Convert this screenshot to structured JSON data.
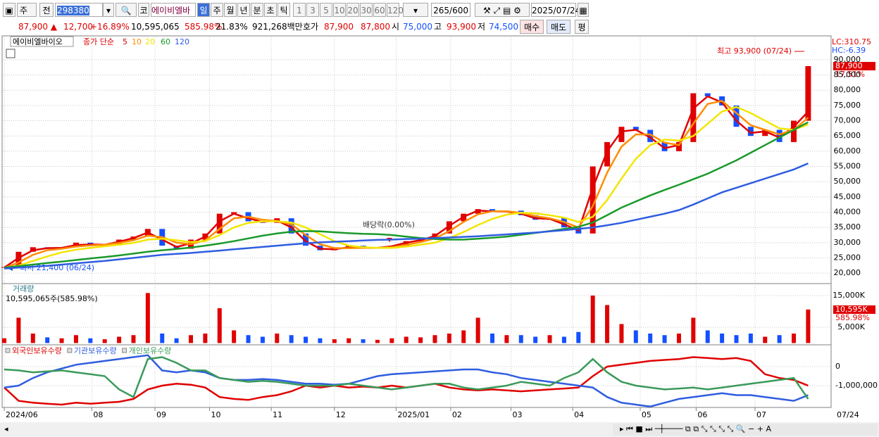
{
  "toolbar": {
    "market": "주",
    "range": "전",
    "code": "298380",
    "exchange": "코",
    "name": "에이비엘바",
    "periods": [
      "일",
      "주",
      "월",
      "년",
      "분",
      "초",
      "틱"
    ],
    "intervals": [
      "1",
      "3",
      "5",
      "10",
      "20",
      "30",
      "60",
      "120"
    ],
    "count": "265/600",
    "date": "2025/07/24"
  },
  "quote": {
    "price": "87,900 ▲",
    "change": "12,700",
    "rate": "+16.89%",
    "volume": "10,595,065",
    "volume_rate": "585.98%",
    "turnover": "21.83%",
    "amount": "921,268백만",
    "bid_label": "호가",
    "ask": "87,900",
    "bid": "87,800",
    "open_label": "시",
    "open": "75,000",
    "high_label": "고",
    "high": "93,900",
    "low_label": "저",
    "low": "74,500",
    "buy": "매수",
    "sell": "매도",
    "avg": "평"
  },
  "x_axis": {
    "xlim": [
      -0.1,
      57.6
    ],
    "xticks": [
      {
        "value": 0,
        "label": "2024/06"
      },
      {
        "value": 6.1,
        "label": "08"
      },
      {
        "value": 10.5,
        "label": "09"
      },
      {
        "value": 14.3,
        "label": "10"
      },
      {
        "value": 18.6,
        "label": "11"
      },
      {
        "value": 23.0,
        "label": "12"
      },
      {
        "value": 27.3,
        "label": "2025/01"
      },
      {
        "value": 31.1,
        "label": "02"
      },
      {
        "value": 35.3,
        "label": "03"
      },
      {
        "value": 39.6,
        "label": "04"
      },
      {
        "value": 44.3,
        "label": "05"
      },
      {
        "value": 48.2,
        "label": "06"
      },
      {
        "value": 52.3,
        "label": "07"
      }
    ],
    "end_label": "07/24"
  },
  "chart_data": [
    {
      "type": "candlestick",
      "name": "에이비엘바이오",
      "ma_label": "종가 단순",
      "up_color": "#e00000",
      "down_color": "#1450ff",
      "close": [
        22000,
        27000,
        28500,
        28000,
        28500,
        30000,
        29000,
        29500,
        31000,
        32000,
        34500,
        29000,
        28000,
        31000,
        33000,
        39500,
        40000,
        37000,
        36500,
        38000,
        33000,
        29000,
        27500,
        28000,
        29000,
        28000,
        28500,
        29000,
        30500,
        31000,
        33000,
        37000,
        39500,
        41000,
        40000,
        40500,
        39000,
        37500,
        38000,
        35000,
        33000,
        55000,
        63000,
        68000,
        67000,
        63000,
        60000,
        63000,
        79000,
        78000,
        75000,
        68000,
        65000,
        67000,
        63000,
        70000,
        87900
      ],
      "series": [
        {
          "name": "5",
          "color": "#e00000",
          "values": [
            21800,
            25000,
            27500,
            28200,
            28300,
            29200,
            29400,
            29300,
            30300,
            31500,
            33300,
            31000,
            28600,
            29800,
            32000,
            37000,
            39500,
            38000,
            36800,
            37300,
            35000,
            30500,
            28000,
            27800,
            28500,
            28300,
            28300,
            28800,
            30000,
            30800,
            32200,
            35500,
            38500,
            40500,
            40300,
            40200,
            39500,
            38000,
            37800,
            36000,
            34000,
            48000,
            60000,
            66500,
            67000,
            64500,
            61000,
            62000,
            74000,
            78000,
            76000,
            70000,
            66000,
            66500,
            64500,
            68000,
            73000
          ]
        },
        {
          "name": "10",
          "color": "#ff8c00",
          "values": [
            21700,
            23500,
            26000,
            27500,
            28000,
            28700,
            29100,
            29300,
            29900,
            30800,
            32300,
            31800,
            30000,
            29500,
            30800,
            34500,
            38000,
            38500,
            37500,
            37100,
            36000,
            32500,
            29500,
            28200,
            28200,
            28300,
            28300,
            28500,
            29300,
            30200,
            31400,
            33800,
            36800,
            39300,
            40300,
            40300,
            39800,
            38700,
            38000,
            36800,
            35000,
            42000,
            53000,
            61500,
            65500,
            65500,
            62800,
            62000,
            69000,
            75500,
            76500,
            72500,
            68500,
            67000,
            65500,
            67000,
            71000
          ]
        },
        {
          "name": "20",
          "color": "#f2e600",
          "values": [
            21600,
            22500,
            24000,
            25500,
            26800,
            27700,
            28300,
            28800,
            29300,
            29900,
            31000,
            31300,
            30800,
            30200,
            30500,
            32500,
            35000,
            36500,
            37000,
            37000,
            36600,
            35000,
            32800,
            30500,
            29000,
            28500,
            28300,
            28300,
            28700,
            29300,
            30000,
            31500,
            33500,
            35800,
            37800,
            39200,
            39800,
            39600,
            39000,
            38200,
            36800,
            38500,
            44000,
            51000,
            57500,
            62000,
            63800,
            63500,
            65000,
            69000,
            73000,
            74500,
            72500,
            70000,
            67500,
            67000,
            68800
          ]
        },
        {
          "name": "60",
          "color": "#1a9a2a",
          "values": [
            21800,
            22300,
            22800,
            23300,
            23800,
            24300,
            24800,
            25300,
            25800,
            26400,
            27000,
            27500,
            27900,
            28400,
            29000,
            29700,
            30500,
            31400,
            32300,
            33000,
            33600,
            33800,
            33700,
            33400,
            33100,
            32900,
            32800,
            32500,
            32000,
            31500,
            31200,
            31000,
            31000,
            31300,
            31600,
            32000,
            32600,
            33200,
            33800,
            34500,
            35200,
            36600,
            39000,
            41500,
            43500,
            45500,
            47300,
            49000,
            50800,
            52600,
            54800,
            57000,
            59500,
            62000,
            64500,
            67000,
            69500
          ]
        },
        {
          "name": "120",
          "color": "#2f5de0",
          "values": [
            21500,
            21800,
            22100,
            22400,
            22800,
            23200,
            23600,
            24000,
            24500,
            25000,
            25500,
            26000,
            26300,
            26600,
            27000,
            27400,
            27800,
            28200,
            28600,
            29000,
            29400,
            29800,
            30100,
            30300,
            30500,
            30700,
            30900,
            31000,
            31200,
            31300,
            31500,
            31700,
            31900,
            32100,
            32400,
            32700,
            33000,
            33300,
            33700,
            34100,
            34500,
            35000,
            35700,
            36500,
            37500,
            38500,
            39500,
            40700,
            42500,
            44500,
            46500,
            48000,
            49500,
            51000,
            52500,
            54000,
            56000
          ]
        }
      ],
      "ylim": [
        16800,
        96900
      ],
      "yticks": [
        {
          "value": 20000,
          "label": "20,000"
        },
        {
          "value": 25000,
          "label": "25,000"
        },
        {
          "value": 30000,
          "label": "30,000"
        },
        {
          "value": 35000,
          "label": "35,000"
        },
        {
          "value": 40000,
          "label": "40,000"
        },
        {
          "value": 45000,
          "label": "45,000"
        },
        {
          "value": 50000,
          "label": "50,000"
        },
        {
          "value": 55000,
          "label": "55,000"
        },
        {
          "value": 60000,
          "label": "60,000"
        },
        {
          "value": 65000,
          "label": "65,000"
        },
        {
          "value": 70000,
          "label": "70,000"
        },
        {
          "value": 75000,
          "label": "75,000"
        },
        {
          "value": 80000,
          "label": "80,000"
        },
        {
          "value": 85000,
          "label": "85,000"
        },
        {
          "value": 90000,
          "label": "90,000"
        }
      ],
      "grid": true,
      "annotations": {
        "high": "최고 93,900 (07/24)",
        "low": "최저 21,400 (06/24)",
        "dividend": "배당락(0.00%)",
        "lc": "LC:310.75",
        "hc": "HC:-6.39",
        "last": "87,900",
        "last_rate": "17.51%"
      }
    },
    {
      "type": "bar",
      "title": "거래량",
      "label": "10,595,065주(585.98%)",
      "values": [
        1500,
        8000,
        3000,
        1800,
        1500,
        2500,
        1500,
        1200,
        2000,
        2500,
        15800,
        3000,
        1500,
        2500,
        3000,
        11000,
        4000,
        2500,
        2000,
        3000,
        2500,
        2000,
        1500,
        1200,
        1500,
        1200,
        1000,
        1500,
        2000,
        1800,
        2500,
        3000,
        4000,
        8000,
        3000,
        2500,
        2500,
        2000,
        2500,
        2000,
        3500,
        15000,
        12000,
        6000,
        4000,
        3000,
        2500,
        3000,
        8000,
        4000,
        3000,
        2500,
        3000,
        2000,
        2500,
        3000,
        10595
      ],
      "ylim": [
        -560,
        18560
      ],
      "yticks": [
        {
          "value": 5000,
          "label": "5,000K"
        },
        {
          "value": 15000,
          "label": "15,000K"
        }
      ],
      "grid": true,
      "last": "10,595K",
      "last_rate": "585.98%"
    },
    {
      "type": "line",
      "series": [
        {
          "name": "외국인보유수량",
          "color": "#e00000",
          "values": [
            -1100000,
            -1800000,
            -1900000,
            -1950000,
            -2000000,
            -1900000,
            -1950000,
            -1900000,
            -1850000,
            -1700000,
            -1200000,
            -1000000,
            -900000,
            -950000,
            -1100000,
            -1600000,
            -1700000,
            -1750000,
            -1600000,
            -1500000,
            -1300000,
            -1000000,
            -1100000,
            -1000000,
            -1100000,
            -1050000,
            -1100000,
            -1000000,
            -1100000,
            -1000000,
            -900000,
            -1100000,
            -1200000,
            -1250000,
            -1200000,
            -1250000,
            -1300000,
            -1250000,
            -1200000,
            -1150000,
            -1100000,
            -500000,
            0,
            100000,
            200000,
            300000,
            350000,
            400000,
            500000,
            450000,
            400000,
            450000,
            300000,
            -400000,
            -600000,
            -700000,
            -1000000
          ]
        },
        {
          "name": "기관보유수량",
          "color": "#2f5de0",
          "values": [
            -1100000,
            -1000000,
            -600000,
            -300000,
            -100000,
            100000,
            200000,
            300000,
            400000,
            500000,
            600000,
            -200000,
            -300000,
            -200000,
            -300000,
            -600000,
            -700000,
            -700000,
            -650000,
            -700000,
            -800000,
            -900000,
            -900000,
            -950000,
            -900000,
            -700000,
            -500000,
            -400000,
            -350000,
            -300000,
            -250000,
            -200000,
            -150000,
            -150000,
            -300000,
            -400000,
            -600000,
            -700000,
            -800000,
            -900000,
            -1000000,
            -1100000,
            -1600000,
            -1900000,
            -2000000,
            -2100000,
            -1900000,
            -1700000,
            -1600000,
            -1500000,
            -1400000,
            -1500000,
            -1500000,
            -1600000,
            -1700000,
            -1800000,
            -1500000
          ]
        },
        {
          "name": "개인보유수량",
          "color": "#3a9a5a",
          "values": [
            -150000,
            -200000,
            -300000,
            -250000,
            -200000,
            -300000,
            -400000,
            -500000,
            -1200000,
            -1600000,
            400000,
            500000,
            200000,
            -200000,
            -200000,
            -600000,
            -700000,
            -800000,
            -750000,
            -800000,
            -900000,
            -1000000,
            -1000000,
            -1000000,
            -900000,
            -1000000,
            -1100000,
            -1200000,
            -1100000,
            -1000000,
            -900000,
            -900000,
            -1100000,
            -1200000,
            -1100000,
            -1000000,
            -800000,
            -900000,
            -1000000,
            -600000,
            -300000,
            400000,
            -300000,
            -800000,
            -1000000,
            -1100000,
            -1200000,
            -1150000,
            -1100000,
            -1200000,
            -1100000,
            -1000000,
            -900000,
            -800000,
            -700000,
            -600000,
            -1700000
          ]
        }
      ],
      "ylim": [
        -2111000,
        1074000
      ],
      "yticks": [
        0,
        {
          "value": -1000000,
          "label": "-1,000,000"
        }
      ],
      "grid": true
    }
  ]
}
